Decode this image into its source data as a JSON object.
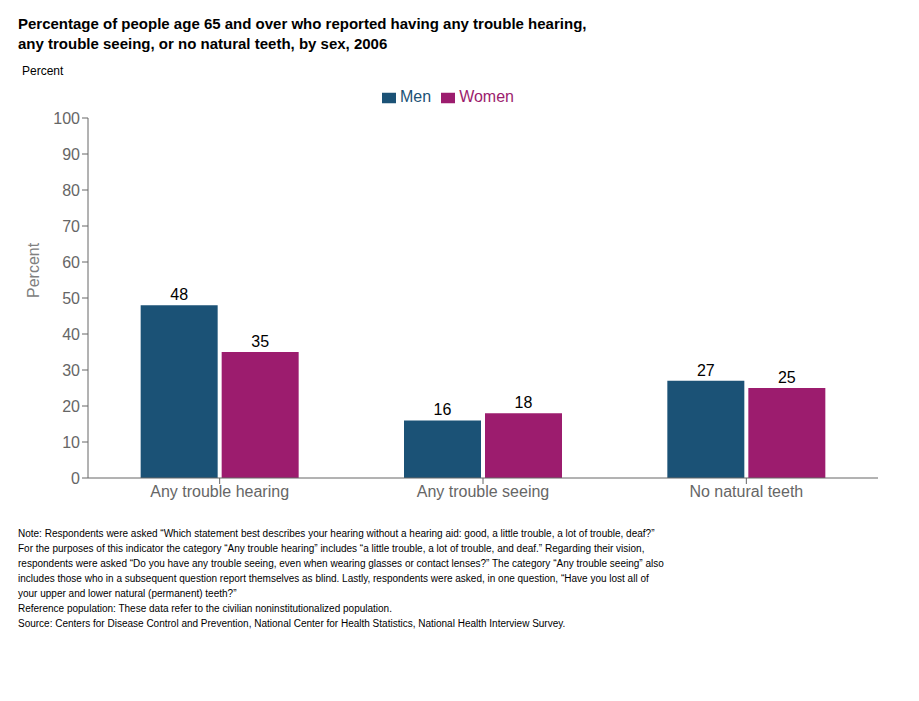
{
  "chart_data": {
    "type": "bar",
    "title": "Percentage of people age 65 and over who reported having any trouble hearing,\nany trouble seeing, or no natural teeth, by sex, 2006",
    "ylabel": "Percent",
    "categories": [
      "Any trouble hearing",
      "Any trouble seeing",
      "No natural teeth"
    ],
    "series": [
      {
        "name": "Men",
        "color": "#1b5276",
        "values": [
          48,
          16,
          27
        ]
      },
      {
        "name": "Women",
        "color": "#9c1c6e",
        "values": [
          35,
          18,
          25
        ]
      }
    ],
    "ylim": [
      0,
      100
    ],
    "yticks": [
      0,
      10,
      20,
      30,
      40,
      50,
      60,
      70,
      80,
      90,
      100
    ],
    "grid": false,
    "legend": "top",
    "data_labels": true,
    "annotations": [
      "Note:  Respondents were asked “Which statement best describes your hearing without a hearing aid: good, a little trouble, a lot of trouble, deaf?”",
      "For the purposes of this indicator the category “Any trouble hearing” includes “a little trouble, a lot of trouble, and deaf.”  Regarding their vision,",
      "respondents were asked “Do you have any trouble seeing, even when wearing glasses or contact lenses?” The category “Any trouble seeing” also",
      "includes those who in a subsequent question report themselves as blind. Lastly, respondents were asked, in one question, “Have you lost all of",
      "your upper and lower natural (permanent) teeth?”",
      "Reference population: These data refer to the civilian noninstitutionalized population.",
      "Source:  Centers for Disease Control and Prevention, National Center for Health Statistics, National Health Interview Survey."
    ]
  }
}
